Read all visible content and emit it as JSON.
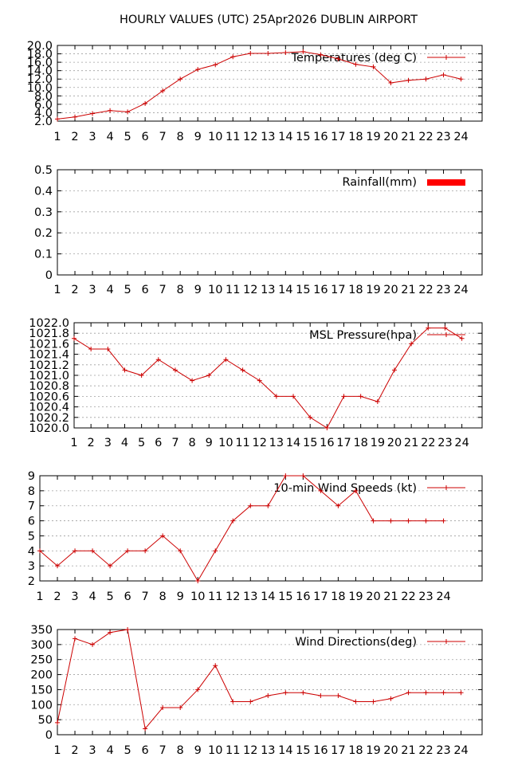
{
  "title": "HOURLY VALUES (UTC) 25Apr2026  DUBLIN AIRPORT",
  "colors": {
    "series": "#cc0000",
    "rain": "#ff0000",
    "grid": "#a0a0a0",
    "axis": "#000000"
  },
  "chart_data": [
    {
      "type": "line",
      "series": [
        {
          "name": "Temperatures (deg C)",
          "values": [
            2.5,
            3.0,
            3.8,
            4.5,
            4.2,
            6.2,
            9.2,
            12.0,
            14.3,
            15.4,
            17.3,
            18.1,
            18.1,
            18.3,
            18.5,
            17.8,
            16.8,
            15.5,
            14.9,
            11.1,
            11.7,
            12.0,
            13.0,
            12.0
          ]
        }
      ],
      "x": [
        1,
        2,
        3,
        4,
        5,
        6,
        7,
        8,
        9,
        10,
        11,
        12,
        13,
        14,
        15,
        16,
        17,
        18,
        19,
        20,
        21,
        22,
        23,
        24
      ],
      "ylim": [
        2.0,
        20.0
      ],
      "yticks": [
        "2.0",
        "4.0",
        "6.0",
        "8.0",
        "10.0",
        "12.0",
        "14.0",
        "16.0",
        "18.0",
        "20.0"
      ],
      "grid": true,
      "legend": "top-right"
    },
    {
      "type": "bar",
      "series": [
        {
          "name": "Rainfall(mm)",
          "values": [
            0,
            0,
            0,
            0,
            0,
            0,
            0,
            0,
            0,
            0,
            0,
            0,
            0,
            0,
            0,
            0,
            0,
            0,
            0,
            0,
            0,
            0,
            0,
            0
          ]
        }
      ],
      "x": [
        1,
        2,
        3,
        4,
        5,
        6,
        7,
        8,
        9,
        10,
        11,
        12,
        13,
        14,
        15,
        16,
        17,
        18,
        19,
        20,
        21,
        22,
        23,
        24
      ],
      "ylim": [
        0,
        0.5
      ],
      "yticks": [
        "0",
        "0.1",
        "0.2",
        "0.3",
        "0.4",
        "0.5"
      ],
      "grid": true,
      "legend": "top-right"
    },
    {
      "type": "line",
      "series": [
        {
          "name": "MSL Pressure(hpa)",
          "values": [
            1021.7,
            1021.5,
            1021.5,
            1021.1,
            1021.0,
            1021.3,
            1021.1,
            1020.9,
            1021.0,
            1021.3,
            1021.1,
            1020.9,
            1020.6,
            1020.6,
            1020.2,
            1020.0,
            1020.6,
            1020.6,
            1020.5,
            1021.1,
            1021.6,
            1021.9,
            1021.9,
            1021.7
          ]
        }
      ],
      "x": [
        1,
        2,
        3,
        4,
        5,
        6,
        7,
        8,
        9,
        10,
        11,
        12,
        13,
        14,
        15,
        16,
        17,
        18,
        19,
        20,
        21,
        22,
        23,
        24
      ],
      "ylim": [
        1020.0,
        1022.0
      ],
      "yticks": [
        "1020.0",
        "1020.2",
        "1020.4",
        "1020.6",
        "1020.8",
        "1021.0",
        "1021.2",
        "1021.4",
        "1021.6",
        "1021.8",
        "1022.0"
      ],
      "grid": true,
      "legend": "top-right"
    },
    {
      "type": "line",
      "series": [
        {
          "name": "10-min Wind Speeds (kt)",
          "values": [
            4,
            3,
            4,
            4,
            3,
            4,
            4,
            5,
            4,
            2,
            4,
            6,
            7,
            7,
            9,
            9,
            8,
            7,
            8,
            6,
            6,
            6,
            6,
            6
          ]
        }
      ],
      "x": [
        0,
        1,
        2,
        3,
        4,
        5,
        6,
        7,
        8,
        9,
        10,
        11,
        12,
        13,
        14,
        15,
        16,
        17,
        18,
        19,
        20,
        21,
        22,
        23
      ],
      "xticks": [
        "1",
        "2",
        "3",
        "4",
        "5",
        "6",
        "7",
        "8",
        "9",
        "10",
        "11",
        "12",
        "13",
        "14",
        "15",
        "16",
        "17",
        "18",
        "19",
        "20",
        "21",
        "22",
        "23",
        "24"
      ],
      "ylim": [
        2,
        9
      ],
      "yticks": [
        "2",
        "3",
        "4",
        "5",
        "6",
        "7",
        "8",
        "9"
      ],
      "grid": true,
      "legend": "top-right"
    },
    {
      "type": "line",
      "series": [
        {
          "name": "Wind Directions(deg)",
          "values": [
            40,
            320,
            300,
            340,
            350,
            20,
            90,
            90,
            150,
            230,
            110,
            110,
            130,
            140,
            140,
            130,
            130,
            110,
            110,
            120,
            140,
            140,
            140,
            140
          ]
        }
      ],
      "x": [
        1,
        2,
        3,
        4,
        5,
        6,
        7,
        8,
        9,
        10,
        11,
        12,
        13,
        14,
        15,
        16,
        17,
        18,
        19,
        20,
        21,
        22,
        23,
        24
      ],
      "ylim": [
        0,
        350
      ],
      "yticks": [
        "0",
        "50",
        "100",
        "150",
        "200",
        "250",
        "300",
        "350"
      ],
      "grid": true,
      "legend": "top-right"
    }
  ]
}
